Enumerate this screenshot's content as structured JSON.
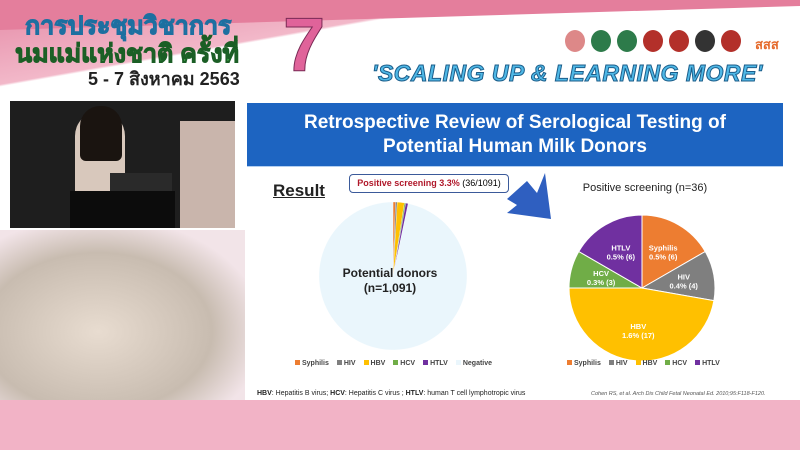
{
  "header": {
    "title_line1": "การประชุมวิชาการ",
    "title_line2": "นมแม่แห่งชาติ ครั้งที่",
    "edition": "7",
    "dates": "5 - 7 สิงหาคม 2563",
    "tagline": "'SCALING UP & LEARNING MORE'",
    "partner_logo_text": "สสส"
  },
  "slide": {
    "title_line1": "Retrospective Review of Serological Testing of",
    "title_line2": "Potential Human Milk Donors",
    "section": "Result",
    "callout_bold": "Positive screening 3.3%",
    "callout_rest": "(36/1091)",
    "footnote": [
      {
        "b": "HBV",
        "t": ": Hepatitis B virus; "
      },
      {
        "b": "HCV",
        "t": ": Hepatitis C virus ; "
      },
      {
        "b": "HTLV",
        "t": ": human T cell lymphotropic virus"
      }
    ],
    "citation": "Cohen RS, et al. Arch Dis Child Fetal Neonatal Ed. 2010;95:F118-F120."
  },
  "chart_data": [
    {
      "type": "pie",
      "center_label_line1": "Potential donors",
      "center_label_line2": "(n=1,091)",
      "categories": [
        "Syphilis",
        "HIV",
        "HBV",
        "HCV",
        "HTLV",
        "Negative"
      ],
      "values": [
        6,
        4,
        17,
        3,
        6,
        1055
      ],
      "colors": [
        "#ed7d31",
        "#7f7f7f",
        "#ffc000",
        "#70ad47",
        "#7030a0",
        "#eaf6fc"
      ],
      "legend_position": "bottom"
    },
    {
      "type": "pie",
      "title": "Positive screening (n=36)",
      "categories": [
        "Syphilis",
        "HIV",
        "HBV",
        "HCV",
        "HTLV"
      ],
      "values": [
        6,
        4,
        17,
        3,
        6
      ],
      "labels": [
        "0.5% (6)",
        "0.4% (4)",
        "1.6% (17)",
        "0.3% (3)",
        "0.5% (6)"
      ],
      "colors": [
        "#ed7d31",
        "#7f7f7f",
        "#ffc000",
        "#70ad47",
        "#7030a0"
      ],
      "legend_position": "bottom"
    }
  ]
}
